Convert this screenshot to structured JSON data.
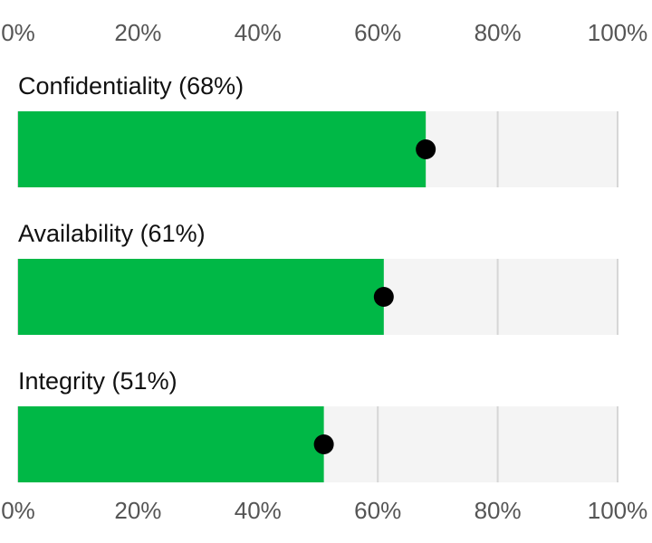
{
  "chart_data": {
    "type": "bar",
    "categories": [
      "Confidentiality (68%)",
      "Availability (61%)",
      "Integrity (51%)"
    ],
    "values": [
      68,
      61,
      51
    ],
    "color": "#00b846",
    "marker_color": "#000000",
    "track_color": "#f4f4f4",
    "xlim": [
      0,
      100
    ],
    "xticks": [
      {
        "value": 0,
        "label": "0%"
      },
      {
        "value": 20,
        "label": "20%"
      },
      {
        "value": 40,
        "label": "40%"
      },
      {
        "value": 60,
        "label": "60%"
      },
      {
        "value": 80,
        "label": "80%"
      },
      {
        "value": 100,
        "label": "100%"
      }
    ],
    "grid": true
  }
}
